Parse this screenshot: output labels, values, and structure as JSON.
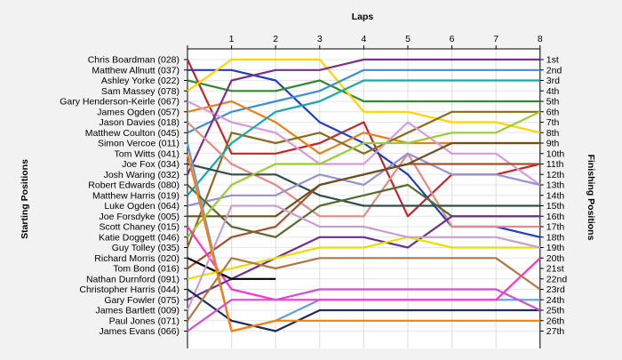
{
  "chart_data": {
    "type": "line",
    "title": "",
    "xlabel": "Laps",
    "ylabel_left": "Starting Positions",
    "ylabel_right": "Finishing Positions",
    "laps": [
      0,
      1,
      2,
      3,
      4,
      5,
      6,
      7,
      8
    ],
    "lap_tick_labels": [
      "1",
      "2",
      "3",
      "4",
      "5",
      "6",
      "7",
      "8"
    ],
    "drivers": [
      "Chris Boardman (028)",
      "Matthew Allnutt (037)",
      "Ashley Yorke (022)",
      "Sam Massey (078)",
      "Gary Henderson-Keirle (067)",
      "James Ogden (057)",
      "Jason Davies (018)",
      "Matthew Coulton (045)",
      "Simon Vercoe (011)",
      "Tom Witts (041)",
      "Joe Fox (034)",
      "Josh Waring (032)",
      "Robert Edwards (080)",
      "Matthew Harris (019)",
      "Luke Ogden (064)",
      "Joe Forsdyke (005)",
      "Scott Chaney (015)",
      "Katie Doggett (046)",
      "Guy Tolley (035)",
      "Richard Morris (020)",
      "Tom Bond (016)",
      "Nathan Durnford (091)",
      "Christopher Harris (044)",
      "Gary Fowler (075)",
      "James Bartlett (009)",
      "Paul Jones (071)",
      "James Evans (066)"
    ],
    "finishing_positions": [
      "1st",
      "2nd",
      "3rd",
      "4th",
      "5th",
      "6th",
      "7th",
      "8th",
      "9th",
      "10th",
      "11th",
      "12th",
      "13th",
      "14th",
      "15th",
      "16th",
      "17th",
      "18th",
      "19th",
      "20th",
      "21st",
      "22nd",
      "23rd",
      "24th",
      "25th",
      "26th",
      "27th"
    ],
    "series": [
      {
        "color": "#c0272d",
        "positions": [
          1,
          10,
          10,
          9,
          7,
          16,
          12,
          12,
          11
        ]
      },
      {
        "color": "#1f3fbf",
        "positions": [
          2,
          2,
          3,
          7,
          9,
          12,
          17,
          17,
          18
        ]
      },
      {
        "color": "#2e8b2e",
        "positions": [
          3,
          4,
          4,
          3,
          5,
          5,
          5,
          5,
          5
        ]
      },
      {
        "color": "#ffd400",
        "positions": [
          4,
          1,
          1,
          1,
          6,
          6,
          7,
          7,
          8
        ]
      },
      {
        "color": "#3c8fd6",
        "positions": [
          8,
          6,
          5,
          4,
          2,
          2,
          2,
          2,
          2
        ]
      },
      {
        "color": "#e8801a",
        "positions": [
          6,
          5,
          7,
          10,
          8,
          9,
          9,
          9,
          9
        ]
      },
      {
        "color": "#8b6b1a",
        "positions": [
          19,
          8,
          9,
          8,
          10,
          8,
          6,
          6,
          6
        ]
      },
      {
        "color": "#d89bd9",
        "positions": [
          5,
          7,
          8,
          11,
          11,
          7,
          10,
          10,
          13
        ]
      },
      {
        "color": "#1aa7a7",
        "positions": [
          14,
          9,
          6,
          5,
          3,
          3,
          3,
          3,
          3
        ]
      },
      {
        "color": "#7a2e8e",
        "positions": [
          12,
          3,
          2,
          2,
          1,
          1,
          1,
          1,
          1
        ]
      },
      {
        "color": "#e38a84",
        "positions": [
          7,
          11,
          13,
          16,
          16,
          10,
          17,
          17,
          17
        ]
      },
      {
        "color": "#2f4f4f",
        "positions": [
          11,
          12,
          12,
          14,
          15,
          15,
          15,
          15,
          15
        ]
      },
      {
        "color": "#9a8fd6",
        "positions": [
          15,
          14,
          14,
          12,
          13,
          10,
          12,
          12,
          13
        ]
      },
      {
        "color": "#60a0e0",
        "positions": [
          9,
          27,
          26,
          24,
          24,
          24,
          24,
          24,
          24
        ]
      },
      {
        "color": "#556b2f",
        "positions": [
          13,
          17,
          18,
          15,
          14,
          13,
          16,
          16,
          16
        ]
      },
      {
        "color": "#a0522d",
        "positions": [
          21,
          18,
          17,
          13,
          12,
          11,
          11,
          11,
          11
        ]
      },
      {
        "color": "#6b5020",
        "positions": [
          16,
          16,
          16,
          13,
          12,
          11,
          9,
          9,
          9
        ]
      },
      {
        "color": "#9acd32",
        "positions": [
          18,
          13,
          11,
          11,
          9,
          9,
          8,
          8,
          6
        ]
      },
      {
        "color": "#ff33cc",
        "positions": [
          17,
          23,
          24,
          24,
          24,
          24,
          24,
          24,
          20
        ]
      },
      {
        "color": "#6d2f8e",
        "positions": [
          24,
          22,
          20,
          18,
          18,
          19,
          16,
          16,
          16
        ]
      },
      {
        "color": "#000000",
        "positions": [
          20,
          22,
          22,
          null,
          null,
          null,
          null,
          null,
          null
        ]
      },
      {
        "color": "#e8e000",
        "positions": [
          22,
          21,
          20,
          19,
          19,
          18,
          19,
          19,
          19
        ]
      },
      {
        "color": "#c8a0d0",
        "positions": [
          25,
          15,
          15,
          17,
          17,
          18,
          18,
          18,
          19
        ]
      },
      {
        "color": "#1e2a5a",
        "positions": [
          23,
          26,
          27,
          25,
          25,
          25,
          25,
          25,
          25
        ]
      },
      {
        "color": "#b07840",
        "positions": [
          26,
          20,
          21,
          20,
          20,
          20,
          20,
          20,
          23
        ]
      },
      {
        "color": "#ff7f00",
        "positions": [
          10,
          27,
          26,
          26,
          26,
          26,
          26,
          26,
          26
        ]
      },
      {
        "color": "#d050d0",
        "positions": [
          27,
          24,
          24,
          23,
          23,
          23,
          23,
          23,
          25
        ]
      }
    ],
    "grid": true,
    "legend": "none"
  }
}
